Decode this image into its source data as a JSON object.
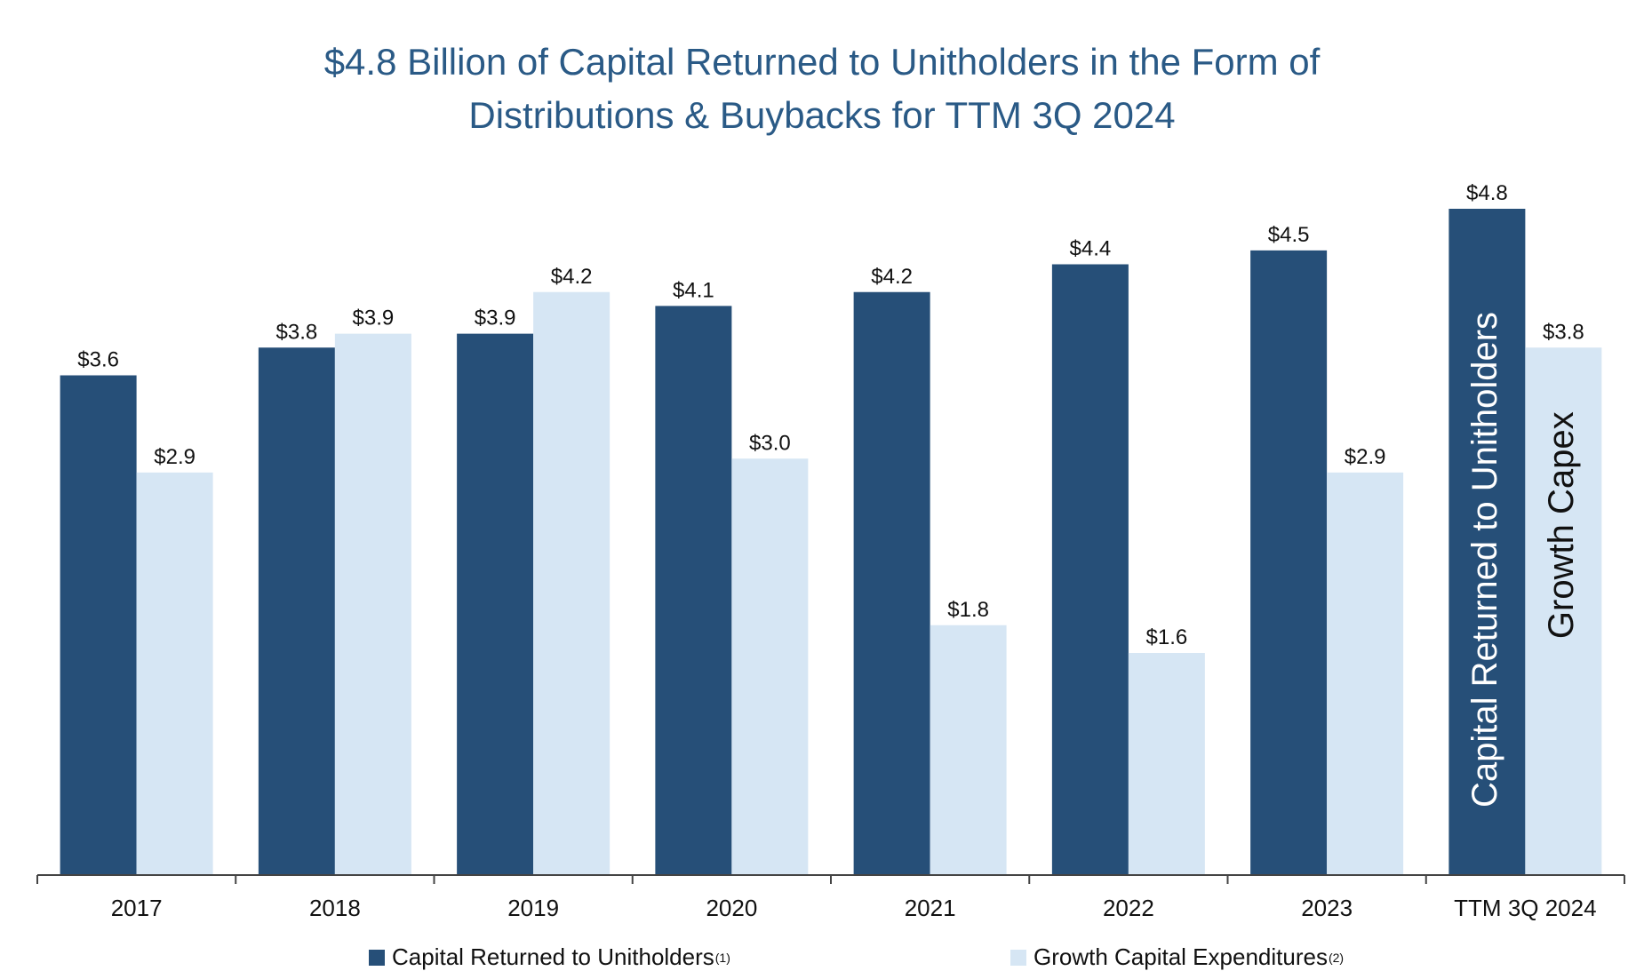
{
  "title": {
    "line1": "$4.8 Billion of Capital Returned to Unitholders in the Form of",
    "line2": "Distributions & Buybacks for TTM 3Q 2024"
  },
  "colors": {
    "capital": "#264f78",
    "growth": "#d6e6f4",
    "title": "#2a5a86"
  },
  "chart_data": {
    "type": "bar",
    "categories": [
      "2017",
      "2018",
      "2019",
      "2020",
      "2021",
      "2022",
      "2023",
      "TTM 3Q 2024"
    ],
    "series": [
      {
        "name": "Capital Returned to Unitholders",
        "values": [
          3.6,
          3.8,
          3.9,
          4.1,
          4.2,
          4.4,
          4.5,
          4.8
        ],
        "labels": [
          "$3.6",
          "$3.8",
          "$3.9",
          "$4.1",
          "$4.2",
          "$4.4",
          "$4.5",
          "$4.8"
        ]
      },
      {
        "name": "Growth Capital Expenditures",
        "values": [
          2.9,
          3.9,
          4.2,
          3.0,
          1.8,
          1.6,
          2.9,
          3.8
        ],
        "labels": [
          "$2.9",
          "$3.9",
          "$4.2",
          "$3.0",
          "$1.8",
          "$1.6",
          "$2.9",
          "$3.8"
        ]
      }
    ],
    "ylim": [
      0,
      4.8
    ],
    "grid": false,
    "legend_position": "bottom",
    "annotations": {
      "capital_bar_text": "Capital Returned to Unitholders",
      "growth_bar_text": "Growth Capex"
    }
  },
  "legend": {
    "capital_label": "Capital Returned to Unitholders",
    "capital_note": "(1)",
    "growth_label": "Growth Capital Expenditures",
    "growth_note": "(2)"
  }
}
